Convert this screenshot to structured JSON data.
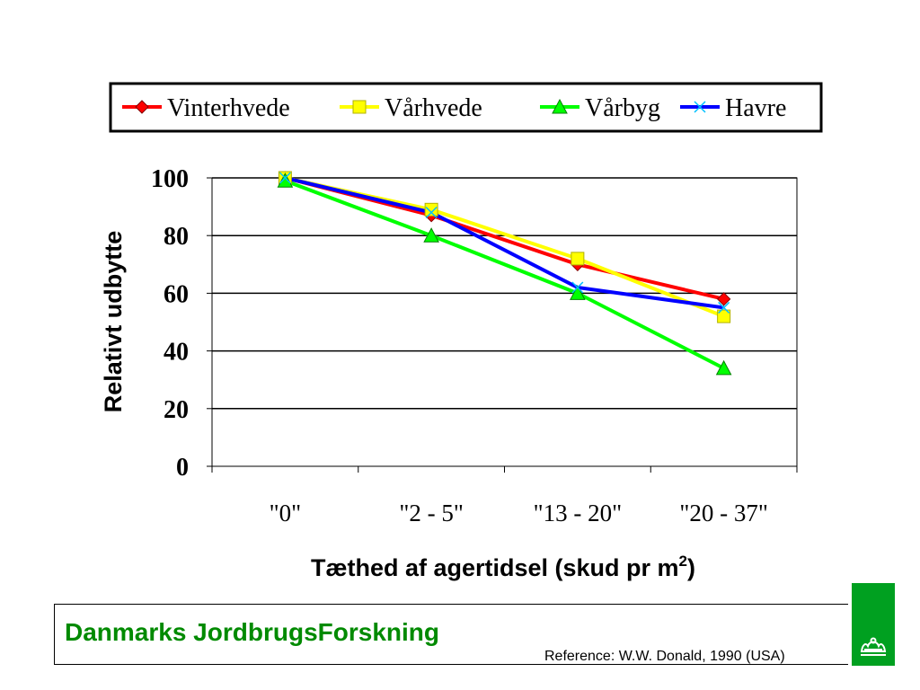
{
  "chart_data": {
    "type": "line",
    "categories": [
      "\"0\"",
      "\"2 - 5\"",
      "\"13 - 20\"",
      "\"20 - 37\""
    ],
    "series": [
      {
        "name": "Vinterhvede",
        "color": "#ff0000",
        "marker": "diamond",
        "values": [
          100,
          87,
          70,
          58
        ]
      },
      {
        "name": "Vårhvede",
        "color": "#ffff00",
        "marker": "square",
        "values": [
          100,
          89,
          72,
          52
        ]
      },
      {
        "name": "Vårbyg",
        "color": "#00ff00",
        "marker": "triangle",
        "values": [
          99,
          80,
          60,
          34
        ]
      },
      {
        "name": "Havre",
        "color": "#0000ff",
        "marker": "x",
        "values": [
          100,
          88,
          62,
          55
        ]
      }
    ],
    "ylabel": "Relativt udbytte",
    "xlabel_main": "Tæthed af agertidsel (skud pr m",
    "xlabel_sup": "2",
    "xlabel_end": ")",
    "ylim": [
      0,
      100
    ],
    "yticks": [
      "0",
      "20",
      "40",
      "60",
      "80",
      "100"
    ],
    "grid": true,
    "legend_position": "top"
  },
  "footer": {
    "organization": "Danmarks JordbrugsForskning",
    "reference": "Reference: W.W. Donald, 1990 (USA)",
    "brand_color": "#008a00",
    "logo_icon": "crown-icon"
  }
}
